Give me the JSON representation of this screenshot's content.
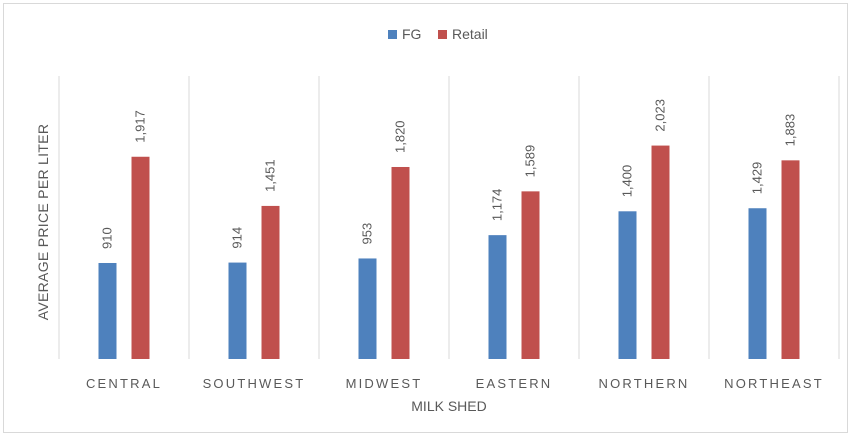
{
  "chart_data": {
    "type": "bar",
    "title": "",
    "xlabel": "MILK SHED",
    "ylabel": "AVERAGE PRICE PER LITER",
    "categories": [
      "CENTRAL",
      "SOUTHWEST",
      "MIDWEST",
      "EASTERN",
      "NORTHERN",
      "NORTHEAST"
    ],
    "series": [
      {
        "name": "FG",
        "color": "#4e81bd",
        "values": [
          910,
          914,
          953,
          1174,
          1400,
          1429
        ],
        "labels": [
          "910",
          "914",
          "953",
          "1,174",
          "1,400",
          "1,429"
        ]
      },
      {
        "name": "Retail",
        "color": "#c0504d",
        "values": [
          1917,
          1451,
          1820,
          1589,
          2023,
          1883
        ],
        "labels": [
          "1,917",
          "1,451",
          "1,820",
          "1,589",
          "2,023",
          "1,883"
        ]
      }
    ],
    "ylim": [
      0,
      2500
    ],
    "grid": "vertical category separators",
    "legend": "top-center"
  }
}
